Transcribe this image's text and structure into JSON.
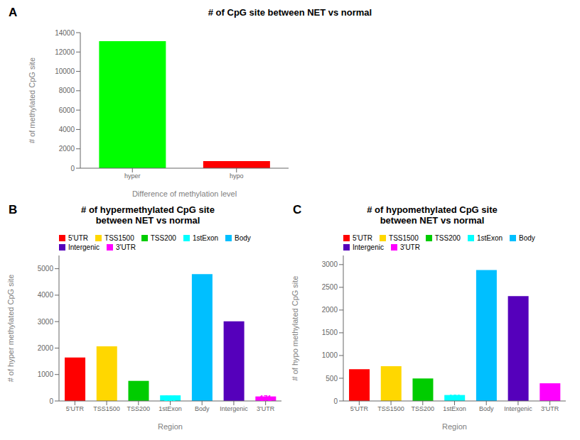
{
  "chart_data": [
    {
      "type": "bar",
      "annotations": [
        "A"
      ],
      "title": "# of CpG site between NET vs normal",
      "categories": [
        "hyper",
        "hypo"
      ],
      "values": [
        13128,
        739
      ],
      "colors": [
        "#00FF00",
        "#FF0000"
      ],
      "xlabel": "Difference of methylation level",
      "ylabel": "# of methylated CpG site",
      "ylim": [
        0,
        14000
      ],
      "yticks": [
        0,
        2000,
        4000,
        6000,
        8000,
        10000,
        12000,
        14000
      ],
      "data_labels": true,
      "grid": false
    },
    {
      "type": "bar",
      "annotations": [
        "B"
      ],
      "title": "# of hypermethylated CpG site\nbetween NET vs normal",
      "categories": [
        "5'UTR",
        "TSS1500",
        "TSS200",
        "1stExon",
        "Body",
        "Intergenic",
        "3'UTR"
      ],
      "values": [
        1643,
        2069,
        760,
        213,
        4799,
        3014,
        171
      ],
      "colors": [
        "#FF0000",
        "#FFD700",
        "#00CC00",
        "#00FFFF",
        "#00BFFF",
        "#5500BB",
        "#FF00FF"
      ],
      "xlabel": "Region",
      "ylabel": "# of hyper methylated CpG site",
      "ylim": [
        0,
        5500
      ],
      "yticks": [
        0,
        1000,
        2000,
        3000,
        4000,
        5000
      ],
      "data_labels": true,
      "grid": false,
      "legend": "upper left"
    },
    {
      "type": "bar",
      "annotations": [
        "C"
      ],
      "title": "# of hypomethylated CpG site\nbetween NET vs normal",
      "categories": [
        "5'UTR",
        "TSS1500",
        "TSS200",
        "1stExon",
        "Body",
        "Intergenic",
        "3'UTR"
      ],
      "values": [
        700,
        763,
        495,
        131,
        2879,
        2307,
        389
      ],
      "colors": [
        "#FF0000",
        "#FFD700",
        "#00CC00",
        "#00FFFF",
        "#00BFFF",
        "#5500BB",
        "#FF00FF"
      ],
      "xlabel": "Region",
      "ylabel": "# of hypo methylated CpG site",
      "ylim": [
        0,
        3200
      ],
      "yticks": [
        0,
        500,
        1000,
        1500,
        2000,
        2500,
        3000
      ],
      "data_labels": true,
      "grid": false,
      "legend": "upper left"
    }
  ]
}
